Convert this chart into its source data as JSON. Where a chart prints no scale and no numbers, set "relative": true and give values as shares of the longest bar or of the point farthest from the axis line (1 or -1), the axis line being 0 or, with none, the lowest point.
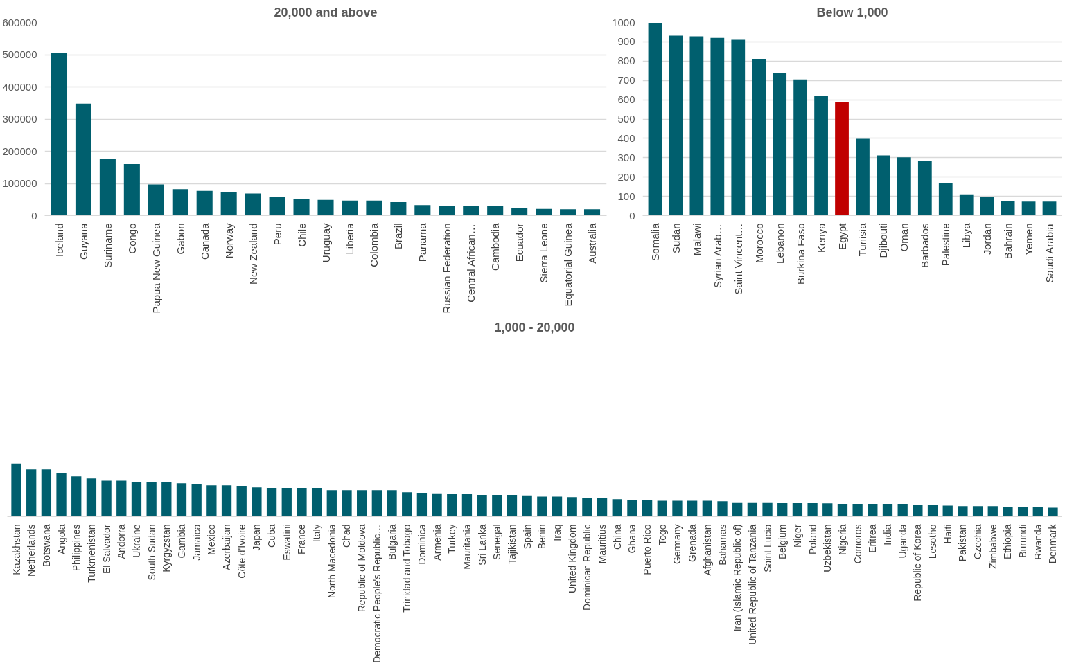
{
  "chart_data": [
    {
      "type": "bar",
      "title": "20,000 and above",
      "categories": [
        "Iceland",
        "Guyana",
        "Suriname",
        "Congo",
        "Papua New Guinea",
        "Gabon",
        "Canada",
        "Norway",
        "New Zealand",
        "Peru",
        "Chile",
        "Uruguay",
        "Liberia",
        "Colombia",
        "Brazil",
        "Panama",
        "Russian Federation",
        "Central African…",
        "Cambodia",
        "Ecuador",
        "Sierra Leone",
        "Equatorial Guinea",
        "Australia"
      ],
      "values": [
        505000,
        348000,
        177000,
        160000,
        97000,
        82000,
        77000,
        74000,
        69000,
        58000,
        52000,
        49000,
        47000,
        47000,
        42000,
        33000,
        31000,
        29000,
        29000,
        24000,
        21000,
        20000,
        20000
      ],
      "color": "#005f6e",
      "ylim": [
        0,
        600000
      ],
      "yticks": [
        0,
        100000,
        200000,
        300000,
        400000,
        500000,
        600000
      ],
      "grid": "y"
    },
    {
      "type": "bar",
      "title": "Below 1,000",
      "categories": [
        "Somalia",
        "Sudan",
        "Malawi",
        "Syrian Arab…",
        "Saint Vincent…",
        "Morocco",
        "Lebanon",
        "Burkina Faso",
        "Kenya",
        "Egypt",
        "Tunisia",
        "Djibouti",
        "Oman",
        "Barbados",
        "Palestine",
        "Libya",
        "Jordan",
        "Bahrain",
        "Yemen",
        "Saudi Arabia"
      ],
      "values": [
        998,
        932,
        928,
        920,
        910,
        812,
        740,
        705,
        618,
        590,
        398,
        312,
        302,
        282,
        168,
        110,
        95,
        75,
        73,
        73
      ],
      "colors": [
        "#005f6e",
        "#005f6e",
        "#005f6e",
        "#005f6e",
        "#005f6e",
        "#005f6e",
        "#005f6e",
        "#005f6e",
        "#005f6e",
        "#c00000",
        "#005f6e",
        "#005f6e",
        "#005f6e",
        "#005f6e",
        "#005f6e",
        "#005f6e",
        "#005f6e",
        "#005f6e",
        "#005f6e",
        "#005f6e"
      ],
      "ylim": [
        0,
        1000
      ],
      "yticks": [
        0,
        100,
        200,
        300,
        400,
        500,
        600,
        700,
        800,
        900,
        1000
      ],
      "grid": "y"
    },
    {
      "type": "bar",
      "title": "1,000 - 20,000",
      "relative": true,
      "categories": [
        "Kazakhstan",
        "Netherlands",
        "Botswana",
        "Angola",
        "Philippines",
        "Turkmenistan",
        "El Salvador",
        "Andorra",
        "Ukraine",
        "South Sudan",
        "Kyrgyzstan",
        "Gambia",
        "Jamaica",
        "Mexico",
        "Azerbaijan",
        "Côte d'Ivoire",
        "Japan",
        "Cuba",
        "Eswatini",
        "France",
        "Italy",
        "North Macedonia",
        "Chad",
        "Republic of Moldova",
        "Democratic People's Republic…",
        "Bulgaria",
        "Trinidad and Tobago",
        "Dominica",
        "Armenia",
        "Turkey",
        "Mauritania",
        "Sri Lanka",
        "Senegal",
        "Tajikistan",
        "Spain",
        "Benin",
        "Iraq",
        "United Kingdom",
        "Dominican Republic",
        "Mauritius",
        "China",
        "Ghana",
        "Puerto Rico",
        "Togo",
        "Germany",
        "Grenada",
        "Afghanistan",
        "Bahamas",
        "Iran (Islamic Republic of)",
        "United Republic of Tanzania",
        "Saint Lucia",
        "Belgium",
        "Niger",
        "Poland",
        "Uzbekistan",
        "Nigeria",
        "Comoros",
        "Eritrea",
        "India",
        "Uganda",
        "Republic of Korea",
        "Lesotho",
        "Haiti",
        "Pakistan",
        "Czechia",
        "Zimbabwe",
        "Ethiopia",
        "Burundi",
        "Rwanda",
        "Denmark"
      ],
      "values": [
        1.0,
        0.89,
        0.89,
        0.83,
        0.76,
        0.72,
        0.68,
        0.68,
        0.66,
        0.65,
        0.65,
        0.63,
        0.62,
        0.59,
        0.59,
        0.58,
        0.55,
        0.54,
        0.54,
        0.54,
        0.54,
        0.5,
        0.5,
        0.5,
        0.5,
        0.5,
        0.46,
        0.45,
        0.44,
        0.43,
        0.43,
        0.41,
        0.41,
        0.41,
        0.4,
        0.38,
        0.38,
        0.37,
        0.35,
        0.35,
        0.33,
        0.32,
        0.32,
        0.3,
        0.3,
        0.3,
        0.3,
        0.29,
        0.27,
        0.27,
        0.27,
        0.26,
        0.26,
        0.26,
        0.25,
        0.24,
        0.24,
        0.24,
        0.24,
        0.24,
        0.23,
        0.23,
        0.21,
        0.2,
        0.2,
        0.2,
        0.19,
        0.19,
        0.18,
        0.17
      ],
      "color": "#005f6e"
    }
  ]
}
